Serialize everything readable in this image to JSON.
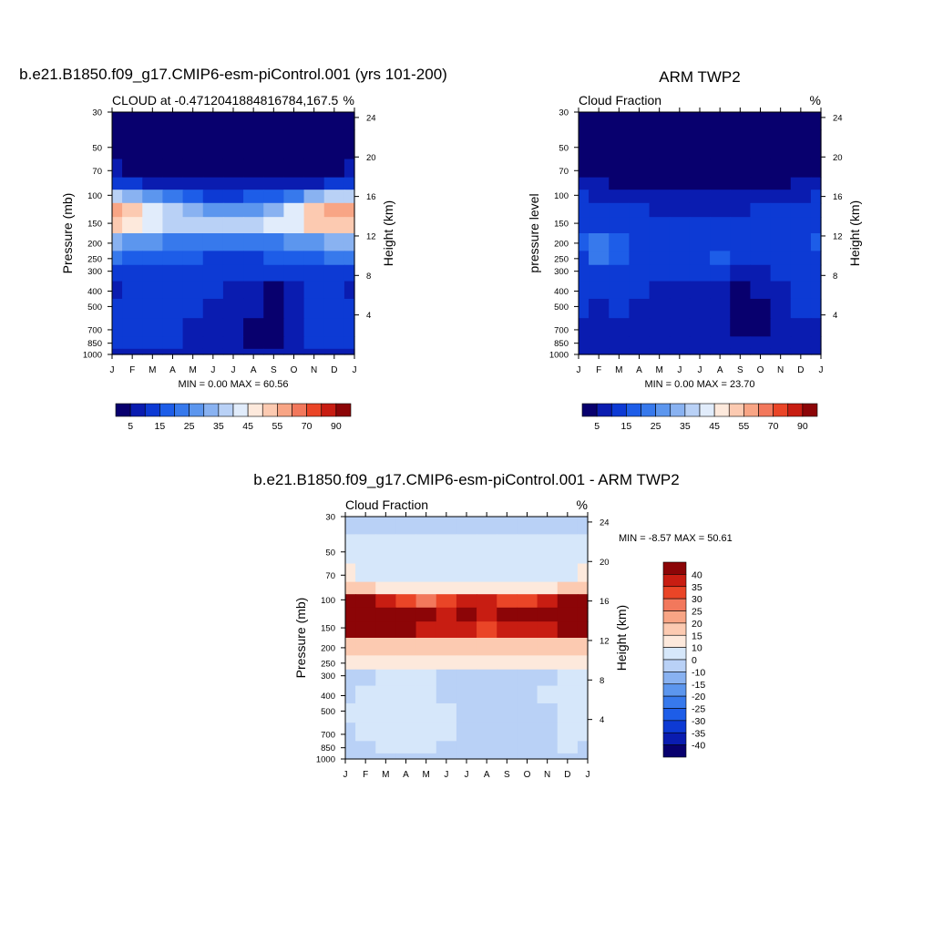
{
  "chart_data": [
    {
      "type": "heatmap",
      "title": "b.e21.B1850.f09_g17.CMIP6-esm-piControl.001 (yrs 101-200)",
      "left_string": "CLOUD at -0.4712041884816784,167.5",
      "right_string": "%",
      "ylabel": "Pressure (mb)",
      "ylabel_right": "Height (km)",
      "stats": "MIN =   0.00 MAX =  60.56",
      "months": [
        "J",
        "F",
        "M",
        "A",
        "M",
        "J",
        "J",
        "A",
        "S",
        "O",
        "N",
        "D",
        "J"
      ],
      "pressure_ticks": [
        "30",
        "50",
        "70",
        "100",
        "150",
        "200",
        "250",
        "300",
        "400",
        "500",
        "700",
        "850",
        "1000"
      ],
      "height_ticks": [
        "24",
        "20",
        "16",
        "12",
        "8",
        "4"
      ],
      "colorbar_labels": [
        "5",
        "15",
        "25",
        "35",
        "45",
        "55",
        "70",
        "90"
      ],
      "min": 0.0,
      "max": 60.56,
      "grid": {
        "levels": [
          30,
          50,
          70,
          85,
          100,
          125,
          150,
          200,
          250,
          300,
          400,
          500,
          700,
          850,
          1000
        ],
        "rows": [
          [
            0,
            0,
            0,
            0,
            0,
            0,
            0,
            0,
            0,
            0,
            0,
            0,
            0
          ],
          [
            1,
            1,
            1,
            1,
            1,
            1,
            1,
            1,
            1,
            1,
            1,
            1,
            1
          ],
          [
            5,
            3,
            2,
            1,
            1,
            1,
            1,
            1,
            1,
            1,
            1,
            3,
            5
          ],
          [
            14,
            11,
            9,
            8,
            7,
            6,
            6,
            6,
            7,
            8,
            9,
            11,
            14
          ],
          [
            38,
            34,
            28,
            20,
            16,
            14,
            14,
            15,
            18,
            24,
            32,
            36,
            38
          ],
          [
            58,
            54,
            44,
            36,
            30,
            27,
            26,
            27,
            32,
            40,
            50,
            56,
            58
          ],
          [
            54,
            48,
            42,
            38,
            36,
            35,
            35,
            36,
            40,
            44,
            50,
            52,
            54
          ],
          [
            30,
            28,
            26,
            24,
            22,
            22,
            22,
            22,
            24,
            26,
            28,
            30,
            30
          ],
          [
            20,
            18,
            16,
            16,
            15,
            14,
            14,
            14,
            15,
            16,
            18,
            20,
            20
          ],
          [
            12,
            12,
            11,
            11,
            10,
            10,
            10,
            10,
            11,
            11,
            12,
            12,
            12
          ],
          [
            9,
            10,
            12,
            12,
            12,
            10,
            8,
            6,
            4,
            8,
            12,
            12,
            9
          ],
          [
            11,
            12,
            12,
            12,
            10,
            8,
            7,
            5,
            3,
            6,
            11,
            12,
            11
          ],
          [
            10,
            10,
            10,
            10,
            9,
            7,
            6,
            3,
            2,
            5,
            10,
            10,
            10
          ],
          [
            10,
            10,
            10,
            10,
            9,
            8,
            6,
            4,
            3,
            6,
            10,
            10,
            10
          ],
          [
            9,
            9,
            9,
            9,
            9,
            8,
            7,
            6,
            5,
            7,
            9,
            9,
            9
          ]
        ]
      }
    },
    {
      "type": "heatmap",
      "title": "ARM TWP2",
      "left_string": "Cloud Fraction",
      "right_string": "%",
      "ylabel": "pressure level",
      "ylabel_right": "Height (km)",
      "stats": "MIN =   0.00 MAX =  23.70",
      "months": [
        "J",
        "F",
        "M",
        "A",
        "M",
        "J",
        "J",
        "A",
        "S",
        "O",
        "N",
        "D",
        "J"
      ],
      "pressure_ticks": [
        "30",
        "50",
        "70",
        "100",
        "150",
        "200",
        "250",
        "300",
        "400",
        "500",
        "700",
        "850",
        "1000"
      ],
      "height_ticks": [
        "24",
        "20",
        "16",
        "12",
        "8",
        "4"
      ],
      "colorbar_labels": [
        "5",
        "15",
        "25",
        "35",
        "45",
        "55",
        "70",
        "90"
      ],
      "min": 0.0,
      "max": 23.7,
      "grid": {
        "levels": [
          30,
          50,
          70,
          85,
          100,
          125,
          150,
          200,
          250,
          300,
          400,
          500,
          700,
          850,
          1000
        ],
        "rows": [
          [
            1,
            1,
            1,
            1,
            1,
            1,
            1,
            1,
            1,
            1,
            1,
            1,
            1
          ],
          [
            1,
            1,
            1,
            1,
            1,
            1,
            1,
            1,
            1,
            1,
            1,
            1,
            1
          ],
          [
            2,
            2,
            1,
            1,
            1,
            1,
            1,
            1,
            1,
            1,
            1,
            2,
            2
          ],
          [
            6,
            5,
            4,
            3,
            3,
            3,
            3,
            3,
            3,
            3,
            4,
            5,
            7
          ],
          [
            10,
            9,
            8,
            7,
            6,
            6,
            6,
            6,
            6,
            7,
            8,
            9,
            11
          ],
          [
            13,
            12,
            11,
            10,
            9,
            9,
            9,
            9,
            9,
            10,
            11,
            12,
            13
          ],
          [
            14,
            13,
            12,
            11,
            11,
            10,
            10,
            11,
            11,
            12,
            12,
            13,
            14
          ],
          [
            16,
            22,
            17,
            12,
            12,
            14,
            12,
            13,
            14,
            13,
            12,
            14,
            15
          ],
          [
            14,
            21,
            16,
            12,
            12,
            13,
            11,
            15,
            12,
            11,
            12,
            13,
            14
          ],
          [
            12,
            14,
            13,
            11,
            11,
            10,
            10,
            11,
            9,
            9,
            10,
            12,
            12
          ],
          [
            10,
            10,
            11,
            10,
            9,
            8,
            9,
            6,
            3,
            5,
            9,
            10,
            10
          ],
          [
            10,
            9,
            10,
            9,
            9,
            8,
            8,
            6,
            2,
            4,
            9,
            10,
            10
          ],
          [
            9,
            5,
            8,
            8,
            8,
            7,
            5,
            6,
            2,
            3,
            8,
            9,
            9
          ],
          [
            9,
            9,
            9,
            9,
            9,
            8,
            8,
            7,
            6,
            7,
            9,
            9,
            9
          ],
          [
            5,
            5,
            5,
            5,
            5,
            5,
            5,
            5,
            5,
            5,
            5,
            5,
            5
          ]
        ]
      }
    },
    {
      "type": "heatmap",
      "title": "b.e21.B1850.f09_g17.CMIP6-esm-piControl.001 - ARM TWP2",
      "left_string": "Cloud Fraction",
      "right_string": "%",
      "ylabel": "Pressure (mb)",
      "ylabel_right": "Height (km)",
      "stats": "MIN =  -8.57 MAX =  50.61",
      "months": [
        "J",
        "F",
        "M",
        "A",
        "M",
        "J",
        "J",
        "A",
        "S",
        "O",
        "N",
        "D",
        "J"
      ],
      "pressure_ticks": [
        "30",
        "50",
        "70",
        "100",
        "150",
        "200",
        "250",
        "300",
        "400",
        "500",
        "700",
        "850",
        "1000"
      ],
      "height_ticks": [
        "24",
        "20",
        "16",
        "12",
        "8",
        "4"
      ],
      "colorbar_labels": [
        "40",
        "35",
        "30",
        "25",
        "20",
        "15",
        "10",
        "0",
        "-10",
        "-15",
        "-20",
        "-25",
        "-30",
        "-35",
        "-40"
      ],
      "min": -8.57,
      "max": 50.61,
      "grid": {
        "levels": [
          30,
          50,
          70,
          85,
          100,
          125,
          150,
          200,
          250,
          300,
          400,
          500,
          700,
          850,
          1000
        ],
        "rows": [
          [
            -3,
            -3,
            -3,
            -3,
            -3,
            -3,
            -3,
            -3,
            -3,
            -3,
            -3,
            -3,
            -3
          ],
          [
            1,
            1,
            1,
            1,
            1,
            1,
            1,
            1,
            1,
            1,
            1,
            1,
            1
          ],
          [
            5,
            4,
            4,
            3,
            3,
            3,
            3,
            3,
            3,
            3,
            3,
            4,
            5
          ],
          [
            12,
            10,
            9,
            8,
            7,
            6,
            6,
            6,
            7,
            8,
            9,
            10,
            12
          ],
          [
            44,
            40,
            32,
            26,
            24,
            26,
            30,
            30,
            28,
            26,
            30,
            36,
            42
          ],
          [
            50,
            48,
            44,
            40,
            36,
            34,
            42,
            34,
            38,
            36,
            36,
            44,
            48
          ],
          [
            42,
            40,
            44,
            36,
            34,
            30,
            30,
            28,
            30,
            32,
            34,
            38,
            40
          ],
          [
            14,
            10,
            12,
            14,
            12,
            10,
            10,
            11,
            10,
            11,
            12,
            14,
            14
          ],
          [
            6,
            5,
            5,
            6,
            5,
            5,
            5,
            5,
            5,
            5,
            5,
            6,
            6
          ],
          [
            -2,
            -3,
            1,
            2,
            1,
            -2,
            -2,
            -3,
            -3,
            -3,
            -2,
            2,
            1
          ],
          [
            -2,
            1,
            1,
            1,
            1,
            -2,
            -3,
            -3,
            -2,
            -3,
            1,
            1,
            1
          ],
          [
            1,
            2,
            2,
            1,
            1,
            1,
            -2,
            -3,
            -3,
            -3,
            -2,
            1,
            1
          ],
          [
            -2,
            1,
            1,
            1,
            1,
            1,
            -2,
            -3,
            -3,
            -3,
            -2,
            1,
            1
          ],
          [
            -3,
            -2,
            1,
            1,
            1,
            -2,
            -3,
            -3,
            -3,
            -3,
            -2,
            1,
            -2
          ],
          [
            -3,
            -3,
            -3,
            -3,
            -3,
            -3,
            -3,
            -3,
            -3,
            -3,
            -3,
            -3,
            -3
          ]
        ]
      }
    }
  ],
  "colors": {
    "cloud_palette": [
      "#08006e",
      "#0a1cb0",
      "#0d3ad4",
      "#1d5de8",
      "#3779ec",
      "#5c96ee",
      "#89b2f1",
      "#b9d1f6",
      "#e1ecfb",
      "#fde9dc",
      "#fccab1",
      "#f8a585",
      "#f2785c",
      "#ea4527",
      "#c81d12",
      "#8c0507"
    ],
    "diff_palette": [
      "#08006e",
      "#0a1cb0",
      "#0d3ad4",
      "#1d5de8",
      "#3779ec",
      "#5c96ee",
      "#89b2f1",
      "#b9d1f6",
      "#d6e7fa",
      "#fde9dc",
      "#fccab1",
      "#f8a585",
      "#f2785c",
      "#ea4527",
      "#c81d12",
      "#8c0507"
    ]
  }
}
